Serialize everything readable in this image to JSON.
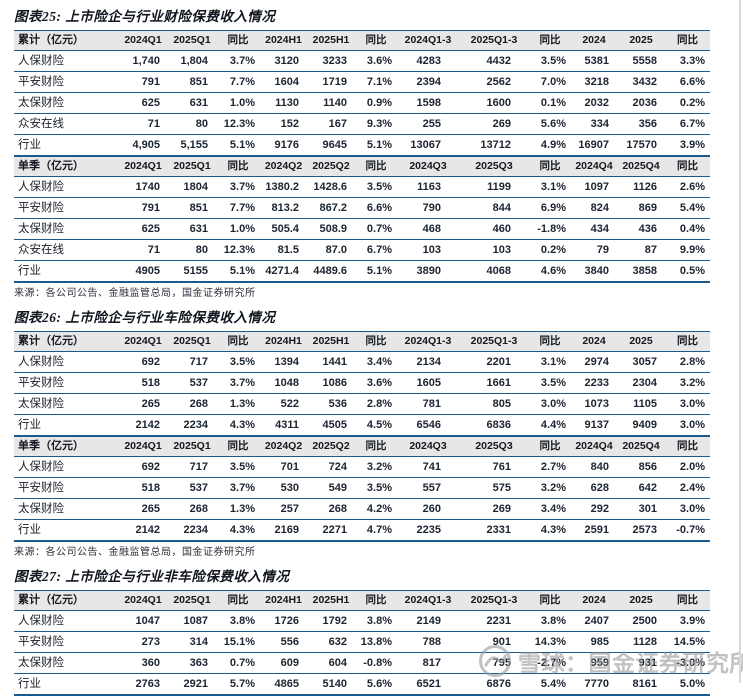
{
  "page": {
    "watermark_text": "雪球：国金证券研究所",
    "colors": {
      "table_border": "#1b5a8a",
      "header_background": "#e7e7e7",
      "watermark_gray": "#9a9a9a"
    }
  },
  "figures": [
    {
      "id": "figure-25",
      "title": "图表25: 上市险企与行业财险保费收入情况",
      "cumulative": {
        "headers": [
          "累计（亿元）",
          "2024Q1",
          "2025Q1",
          "同比",
          "2024H1",
          "2025H1",
          "同比",
          "2024Q1-3",
          "2025Q1-3",
          "同比",
          "2024",
          "2025",
          "同比"
        ],
        "rows": [
          [
            "人保财险",
            "1,740",
            "1,804",
            "3.7%",
            "3120",
            "3233",
            "3.6%",
            "4283",
            "4432",
            "3.5%",
            "5381",
            "5558",
            "3.3%"
          ],
          [
            "平安财险",
            "791",
            "851",
            "7.7%",
            "1604",
            "1719",
            "7.1%",
            "2394",
            "2562",
            "7.0%",
            "3218",
            "3432",
            "6.6%"
          ],
          [
            "太保财险",
            "625",
            "631",
            "1.0%",
            "1130",
            "1140",
            "0.9%",
            "1598",
            "1600",
            "0.1%",
            "2032",
            "2036",
            "0.2%"
          ],
          [
            "众安在线",
            "71",
            "80",
            "12.3%",
            "152",
            "167",
            "9.3%",
            "255",
            "269",
            "5.6%",
            "334",
            "356",
            "6.7%"
          ],
          [
            "行业",
            "4,905",
            "5,155",
            "5.1%",
            "9176",
            "9645",
            "5.1%",
            "13067",
            "13712",
            "4.9%",
            "16907",
            "17570",
            "3.9%"
          ]
        ]
      },
      "quarterly": {
        "headers": [
          "单季（亿元）",
          "2024Q1",
          "2025Q1",
          "同比",
          "2024Q2",
          "2025Q2",
          "同比",
          "2024Q3",
          "2025Q3",
          "同比",
          "2024Q4",
          "2025Q4",
          "同比"
        ],
        "rows": [
          [
            "人保财险",
            "1740",
            "1804",
            "3.7%",
            "1380.2",
            "1428.6",
            "3.5%",
            "1163",
            "1199",
            "3.1%",
            "1097",
            "1126",
            "2.6%"
          ],
          [
            "平安财险",
            "791",
            "851",
            "7.7%",
            "813.2",
            "867.2",
            "6.6%",
            "790",
            "844",
            "6.9%",
            "824",
            "869",
            "5.4%"
          ],
          [
            "太保财险",
            "625",
            "631",
            "1.0%",
            "505.4",
            "508.9",
            "0.7%",
            "468",
            "460",
            "-1.8%",
            "434",
            "436",
            "0.4%"
          ],
          [
            "众安在线",
            "71",
            "80",
            "12.3%",
            "81.5",
            "87.0",
            "6.7%",
            "103",
            "103",
            "0.2%",
            "79",
            "87",
            "9.9%"
          ],
          [
            "行业",
            "4905",
            "5155",
            "5.1%",
            "4271.4",
            "4489.6",
            "5.1%",
            "3890",
            "4068",
            "4.6%",
            "3840",
            "3858",
            "0.5%"
          ]
        ]
      },
      "source": "来源：各公司公告、金融监管总局，国金证券研究所"
    },
    {
      "id": "figure-26",
      "title": "图表26: 上市险企与行业车险保费收入情况",
      "cumulative": {
        "headers": [
          "累计（亿元）",
          "2024Q1",
          "2025Q1",
          "同比",
          "2024H1",
          "2025H1",
          "同比",
          "2024Q1-3",
          "2025Q1-3",
          "同比",
          "2024",
          "2025",
          "同比"
        ],
        "rows": [
          [
            "人保财险",
            "692",
            "717",
            "3.5%",
            "1394",
            "1441",
            "3.4%",
            "2134",
            "2201",
            "3.1%",
            "2974",
            "3057",
            "2.8%"
          ],
          [
            "平安财险",
            "518",
            "537",
            "3.7%",
            "1048",
            "1086",
            "3.6%",
            "1605",
            "1661",
            "3.5%",
            "2233",
            "2304",
            "3.2%"
          ],
          [
            "太保财险",
            "265",
            "268",
            "1.3%",
            "522",
            "536",
            "2.8%",
            "781",
            "805",
            "3.0%",
            "1073",
            "1105",
            "3.0%"
          ],
          [
            "行业",
            "2142",
            "2234",
            "4.3%",
            "4311",
            "4505",
            "4.5%",
            "6546",
            "6836",
            "4.4%",
            "9137",
            "9409",
            "3.0%"
          ]
        ]
      },
      "quarterly": {
        "headers": [
          "单季（亿元）",
          "2024Q1",
          "2025Q1",
          "同比",
          "2024Q2",
          "2025Q2",
          "同比",
          "2024Q3",
          "2025Q3",
          "同比",
          "2024Q4",
          "2025Q4",
          "同比"
        ],
        "rows": [
          [
            "人保财险",
            "692",
            "717",
            "3.5%",
            "701",
            "724",
            "3.2%",
            "741",
            "761",
            "2.7%",
            "840",
            "856",
            "2.0%"
          ],
          [
            "平安财险",
            "518",
            "537",
            "3.7%",
            "530",
            "549",
            "3.5%",
            "557",
            "575",
            "3.2%",
            "628",
            "642",
            "2.4%"
          ],
          [
            "太保财险",
            "265",
            "268",
            "1.3%",
            "257",
            "268",
            "4.2%",
            "260",
            "269",
            "3.4%",
            "292",
            "301",
            "3.0%"
          ],
          [
            "行业",
            "2142",
            "2234",
            "4.3%",
            "2169",
            "2271",
            "4.7%",
            "2235",
            "2331",
            "4.3%",
            "2591",
            "2573",
            "-0.7%"
          ]
        ]
      },
      "source": "来源：各公司公告、金融监管总局，国金证券研究所"
    },
    {
      "id": "figure-27",
      "title": "图表27: 上市险企与行业非车险保费收入情况",
      "cumulative": {
        "headers": [
          "累计（亿元）",
          "2024Q1",
          "2025Q1",
          "同比",
          "2024H1",
          "2025H1",
          "同比",
          "2024Q1-3",
          "2025Q1-3",
          "同比",
          "2024",
          "2025",
          "同比"
        ],
        "rows": [
          [
            "人保财险",
            "1047",
            "1087",
            "3.8%",
            "1726",
            "1792",
            "3.8%",
            "2149",
            "2231",
            "3.8%",
            "2407",
            "2500",
            "3.9%"
          ],
          [
            "平安财险",
            "273",
            "314",
            "15.1%",
            "556",
            "632",
            "13.8%",
            "788",
            "901",
            "14.3%",
            "985",
            "1128",
            "14.5%"
          ],
          [
            "太保财险",
            "360",
            "363",
            "0.7%",
            "609",
            "604",
            "-0.8%",
            "817",
            "795",
            "-2.7%",
            "959",
            "931",
            "-3.0%"
          ],
          [
            "行业",
            "2763",
            "2921",
            "5.7%",
            "4865",
            "5140",
            "5.6%",
            "6521",
            "6876",
            "5.4%",
            "7770",
            "8161",
            "5.0%"
          ]
        ]
      }
    }
  ]
}
